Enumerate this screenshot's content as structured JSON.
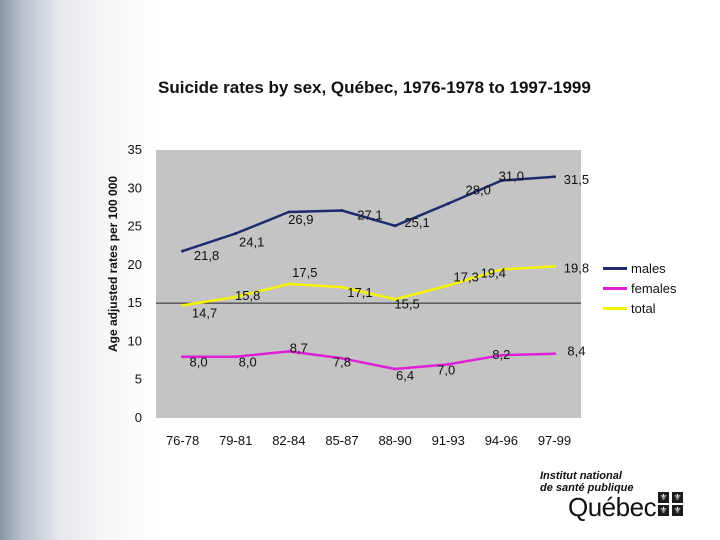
{
  "chart_data": {
    "type": "line",
    "title": "Suicide rates by sex, Québec, 1976-1978 to 1997-1999",
    "xlabel": "",
    "ylabel": "Age adjusted rates per 100 000",
    "categories": [
      "76-78",
      "79-81",
      "82-84",
      "85-87",
      "88-90",
      "91-93",
      "94-96",
      "97-99"
    ],
    "ylim": [
      0,
      35
    ],
    "yticks": [
      0,
      5,
      10,
      15,
      20,
      25,
      30,
      35
    ],
    "grid": false,
    "legend_position": "right",
    "series": [
      {
        "name": "males",
        "color": "#1f2a6e",
        "values": [
          21.8,
          24.1,
          26.9,
          27.1,
          25.1,
          28.0,
          31.0,
          31.5
        ],
        "labels": [
          "21,8",
          "24,1",
          "26,9",
          "27,1",
          "25,1",
          "28,0",
          "31,0",
          "31,5"
        ]
      },
      {
        "name": "females",
        "color": "#e020d8",
        "values": [
          8.0,
          8.0,
          8.7,
          7.8,
          6.4,
          7.0,
          8.2,
          8.4
        ],
        "labels": [
          "8,0",
          "8,0",
          "8,7",
          "7,8",
          "6,4",
          "7,0",
          "8,2",
          "8,4"
        ]
      },
      {
        "name": "total",
        "color": "#f4f400",
        "values": [
          14.7,
          15.8,
          17.5,
          17.1,
          15.5,
          17.3,
          19.4,
          19.8
        ],
        "labels": [
          "14,7",
          "15,8",
          "17,5",
          "17,1",
          "15,5",
          "17,3",
          "19,4",
          "19,8"
        ]
      }
    ]
  },
  "logo": {
    "line1": "Institut national",
    "line2": "de santé publique",
    "word": "Québec"
  }
}
